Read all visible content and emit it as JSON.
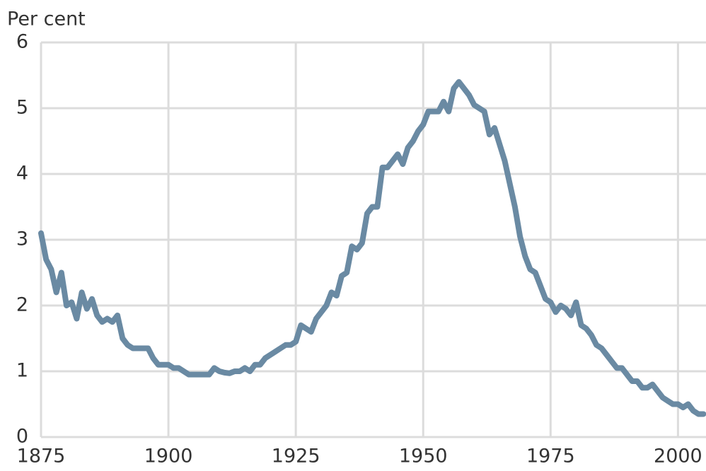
{
  "chart_data": {
    "type": "line",
    "y_label": "Per cent",
    "x": [
      1875,
      1876,
      1877,
      1878,
      1879,
      1880,
      1881,
      1882,
      1883,
      1884,
      1885,
      1886,
      1887,
      1888,
      1889,
      1890,
      1891,
      1892,
      1893,
      1894,
      1895,
      1896,
      1897,
      1898,
      1899,
      1900,
      1901,
      1902,
      1903,
      1904,
      1905,
      1906,
      1907,
      1908,
      1909,
      1910,
      1911,
      1912,
      1913,
      1914,
      1915,
      1916,
      1917,
      1918,
      1919,
      1920,
      1921,
      1922,
      1923,
      1924,
      1925,
      1926,
      1927,
      1928,
      1929,
      1930,
      1931,
      1932,
      1933,
      1934,
      1935,
      1936,
      1937,
      1938,
      1939,
      1940,
      1941,
      1942,
      1943,
      1944,
      1945,
      1946,
      1947,
      1948,
      1949,
      1950,
      1951,
      1952,
      1953,
      1954,
      1955,
      1956,
      1957,
      1958,
      1959,
      1960,
      1961,
      1962,
      1963,
      1964,
      1965,
      1966,
      1967,
      1968,
      1969,
      1970,
      1971,
      1972,
      1973,
      1974,
      1975,
      1976,
      1977,
      1978,
      1979,
      1980,
      1981,
      1982,
      1983,
      1984,
      1985,
      1986,
      1987,
      1988,
      1989,
      1990,
      1991,
      1992,
      1993,
      1994,
      1995,
      1996,
      1997,
      1998,
      1999,
      2000,
      2001,
      2002,
      2003,
      2004,
      2005
    ],
    "series": [
      {
        "color": "#6a8aa3",
        "values": [
          3.1,
          2.7,
          2.55,
          2.2,
          2.5,
          2.0,
          2.05,
          1.8,
          2.2,
          1.95,
          2.1,
          1.85,
          1.75,
          1.8,
          1.75,
          1.85,
          1.5,
          1.4,
          1.35,
          1.35,
          1.35,
          1.35,
          1.2,
          1.1,
          1.1,
          1.1,
          1.05,
          1.05,
          1.0,
          0.95,
          0.95,
          0.95,
          0.95,
          0.95,
          1.05,
          1.0,
          0.98,
          0.97,
          1.0,
          1.0,
          1.05,
          1.0,
          1.1,
          1.1,
          1.2,
          1.25,
          1.3,
          1.35,
          1.4,
          1.4,
          1.45,
          1.7,
          1.65,
          1.6,
          1.8,
          1.9,
          2.0,
          2.2,
          2.15,
          2.45,
          2.5,
          2.9,
          2.85,
          2.95,
          3.4,
          3.5,
          3.5,
          4.1,
          4.1,
          4.2,
          4.3,
          4.15,
          4.4,
          4.5,
          4.65,
          4.75,
          4.95,
          4.95,
          4.95,
          5.1,
          4.95,
          5.3,
          5.4,
          5.3,
          5.2,
          5.05,
          5.0,
          4.95,
          4.6,
          4.7,
          4.45,
          4.2,
          3.85,
          3.5,
          3.05,
          2.75,
          2.55,
          2.5,
          2.3,
          2.1,
          2.05,
          1.9,
          2.0,
          1.95,
          1.85,
          2.05,
          1.7,
          1.65,
          1.55,
          1.4,
          1.35,
          1.25,
          1.15,
          1.05,
          1.05,
          0.95,
          0.85,
          0.85,
          0.75,
          0.75,
          0.8,
          0.7,
          0.6,
          0.55,
          0.5,
          0.5,
          0.45,
          0.5,
          0.4,
          0.35,
          0.35
        ]
      }
    ],
    "xlim": [
      1875,
      2005.5
    ],
    "xticks": [
      1875,
      1900,
      1925,
      1950,
      1975,
      2000
    ],
    "ylim": [
      0,
      6
    ],
    "yticks": [
      0,
      1,
      2,
      3,
      4,
      5,
      6
    ],
    "grid": true
  }
}
